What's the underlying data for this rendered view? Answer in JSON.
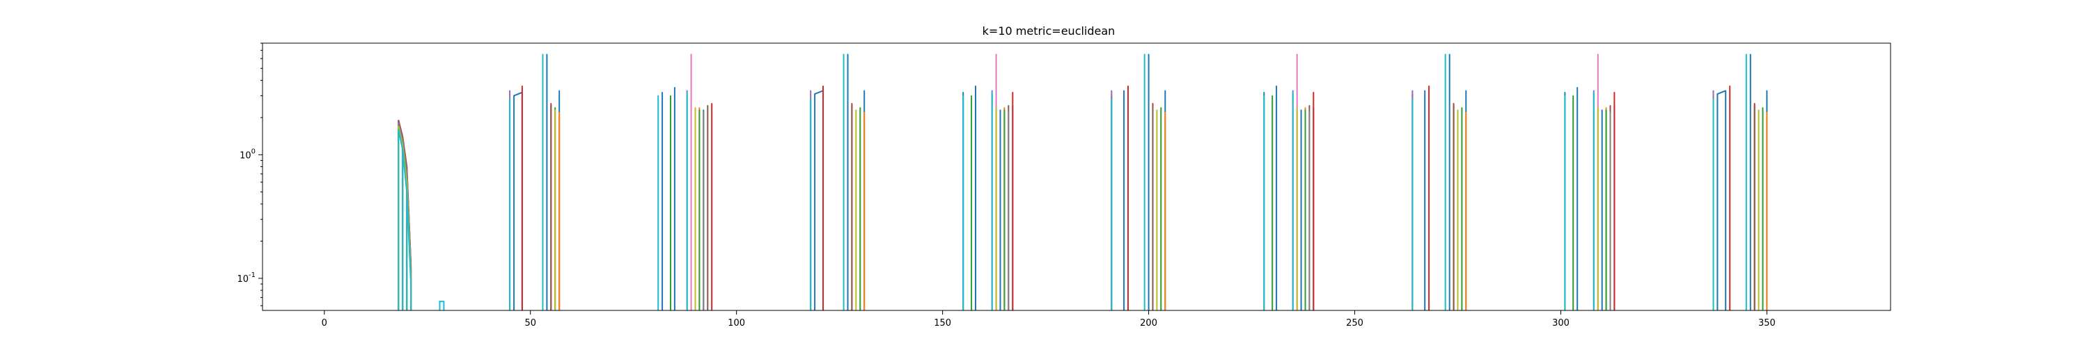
{
  "chart_data": {
    "type": "line",
    "title": "k=10 metric=euclidean",
    "xlabel": "",
    "ylabel": "",
    "xlim": [
      -15,
      380
    ],
    "ylim": [
      0.055,
      8
    ],
    "yscale": "log",
    "grid": false,
    "legend": "none",
    "x_ticks": [
      0,
      50,
      100,
      150,
      200,
      250,
      300,
      350
    ],
    "x_tick_labels": [
      "0",
      "50",
      "100",
      "150",
      "200",
      "250",
      "300",
      "350"
    ],
    "y_ticks": [
      0.1,
      1
    ],
    "y_tick_labels": [
      "10^{-1}",
      "10^{0}"
    ],
    "colors": [
      "#1f77b4",
      "#ff7f0e",
      "#2ca02c",
      "#d62728",
      "#9467bd",
      "#8c564b",
      "#e377c2",
      "#7f7f7f",
      "#bcbd22",
      "#17becf"
    ],
    "series": [
      {
        "color": "#1f77b4",
        "x": [
          18,
          19,
          20,
          21,
          46,
          48,
          54,
          57,
          82,
          85,
          92,
          119,
          121,
          127,
          131,
          155,
          158,
          164,
          167,
          191,
          194,
          200,
          204,
          228,
          231,
          237,
          240,
          264,
          267,
          273,
          277,
          301,
          304,
          310,
          313,
          338,
          340,
          346,
          350
        ],
        "y": [
          1.8,
          1.3,
          0.7,
          0.12,
          3.0,
          3.2,
          6.5,
          3.3,
          3.2,
          3.5,
          2.3,
          3.1,
          3.3,
          6.5,
          3.3,
          3.2,
          3.6,
          2.3,
          2.5,
          3.0,
          3.3,
          6.5,
          3.3,
          3.2,
          3.6,
          2.3,
          2.4,
          3.1,
          3.3,
          6.5,
          3.3,
          3.2,
          3.5,
          2.3,
          2.5,
          3.1,
          3.3,
          6.5,
          3.3
        ]
      },
      {
        "color": "#ff7f0e",
        "x": [
          18,
          19,
          20,
          21,
          57,
          91,
          131,
          165,
          204,
          238,
          277,
          311,
          350
        ],
        "y": [
          1.7,
          1.2,
          0.6,
          0.1,
          2.2,
          2.4,
          2.2,
          2.4,
          2.2,
          2.4,
          2.2,
          2.4,
          2.2
        ]
      },
      {
        "color": "#2ca02c",
        "x": [
          18,
          19,
          20,
          21,
          56,
          84,
          91,
          130,
          157,
          165,
          203,
          230,
          238,
          276,
          303,
          311,
          349
        ],
        "y": [
          1.7,
          1.2,
          0.6,
          0.11,
          2.4,
          3.0,
          2.3,
          2.4,
          3.0,
          2.3,
          2.4,
          3.0,
          2.3,
          2.4,
          3.0,
          2.3,
          2.4
        ]
      },
      {
        "color": "#d62728",
        "x": [
          18,
          19,
          20,
          21,
          48,
          55,
          94,
          121,
          128,
          167,
          195,
          201,
          240,
          268,
          274,
          313,
          341,
          347
        ],
        "y": [
          1.9,
          1.4,
          0.8,
          0.13,
          3.6,
          2.6,
          2.6,
          3.6,
          2.6,
          3.2,
          3.6,
          2.6,
          3.2,
          3.6,
          2.6,
          3.2,
          3.6,
          2.6
        ]
      },
      {
        "color": "#9467bd",
        "x": [
          18,
          19,
          20,
          21,
          45,
          88,
          118,
          162,
          191,
          235,
          264,
          308,
          337
        ],
        "y": [
          1.8,
          1.3,
          0.7,
          0.12,
          3.3,
          3.3,
          3.3,
          3.3,
          3.3,
          3.3,
          3.3,
          3.3,
          3.3
        ]
      },
      {
        "color": "#8c564b",
        "x": [
          18,
          19,
          20,
          21,
          55,
          93,
          128,
          166,
          201,
          239,
          274,
          312,
          347
        ],
        "y": [
          1.9,
          1.4,
          0.8,
          0.13,
          2.5,
          2.5,
          2.5,
          2.5,
          2.5,
          2.5,
          2.5,
          2.5,
          2.5
        ]
      },
      {
        "color": "#e377c2",
        "x": [
          18,
          19,
          20,
          21,
          89,
          163,
          236,
          309
        ],
        "y": [
          1.8,
          1.3,
          0.7,
          0.12,
          6.5,
          6.5,
          6.5,
          6.5
        ]
      },
      {
        "color": "#7f7f7f",
        "x": [
          18,
          19,
          20,
          21,
          92,
          166,
          239,
          312
        ],
        "y": [
          1.8,
          1.3,
          0.7,
          0.12,
          2.2,
          2.2,
          2.2,
          2.2
        ]
      },
      {
        "color": "#bcbd22",
        "x": [
          18,
          19,
          20,
          21,
          56,
          90,
          129,
          163,
          202,
          236,
          275,
          309,
          348
        ],
        "y": [
          1.7,
          1.2,
          0.6,
          0.1,
          2.3,
          2.4,
          2.3,
          2.4,
          2.3,
          2.4,
          2.3,
          2.4,
          2.3
        ]
      },
      {
        "color": "#17becf",
        "x": [
          18,
          19,
          20,
          21,
          28,
          29,
          45,
          53,
          81,
          88,
          118,
          126,
          155,
          162,
          191,
          199,
          228,
          235,
          264,
          272,
          301,
          308,
          337,
          345
        ],
        "y": [
          1.6,
          1.1,
          0.5,
          0.09,
          0.065,
          0.065,
          2.8,
          6.5,
          3.0,
          3.2,
          2.8,
          6.5,
          3.0,
          3.2,
          2.8,
          6.5,
          3.0,
          3.2,
          2.8,
          6.5,
          3.0,
          3.2,
          2.8,
          6.5
        ]
      }
    ]
  }
}
